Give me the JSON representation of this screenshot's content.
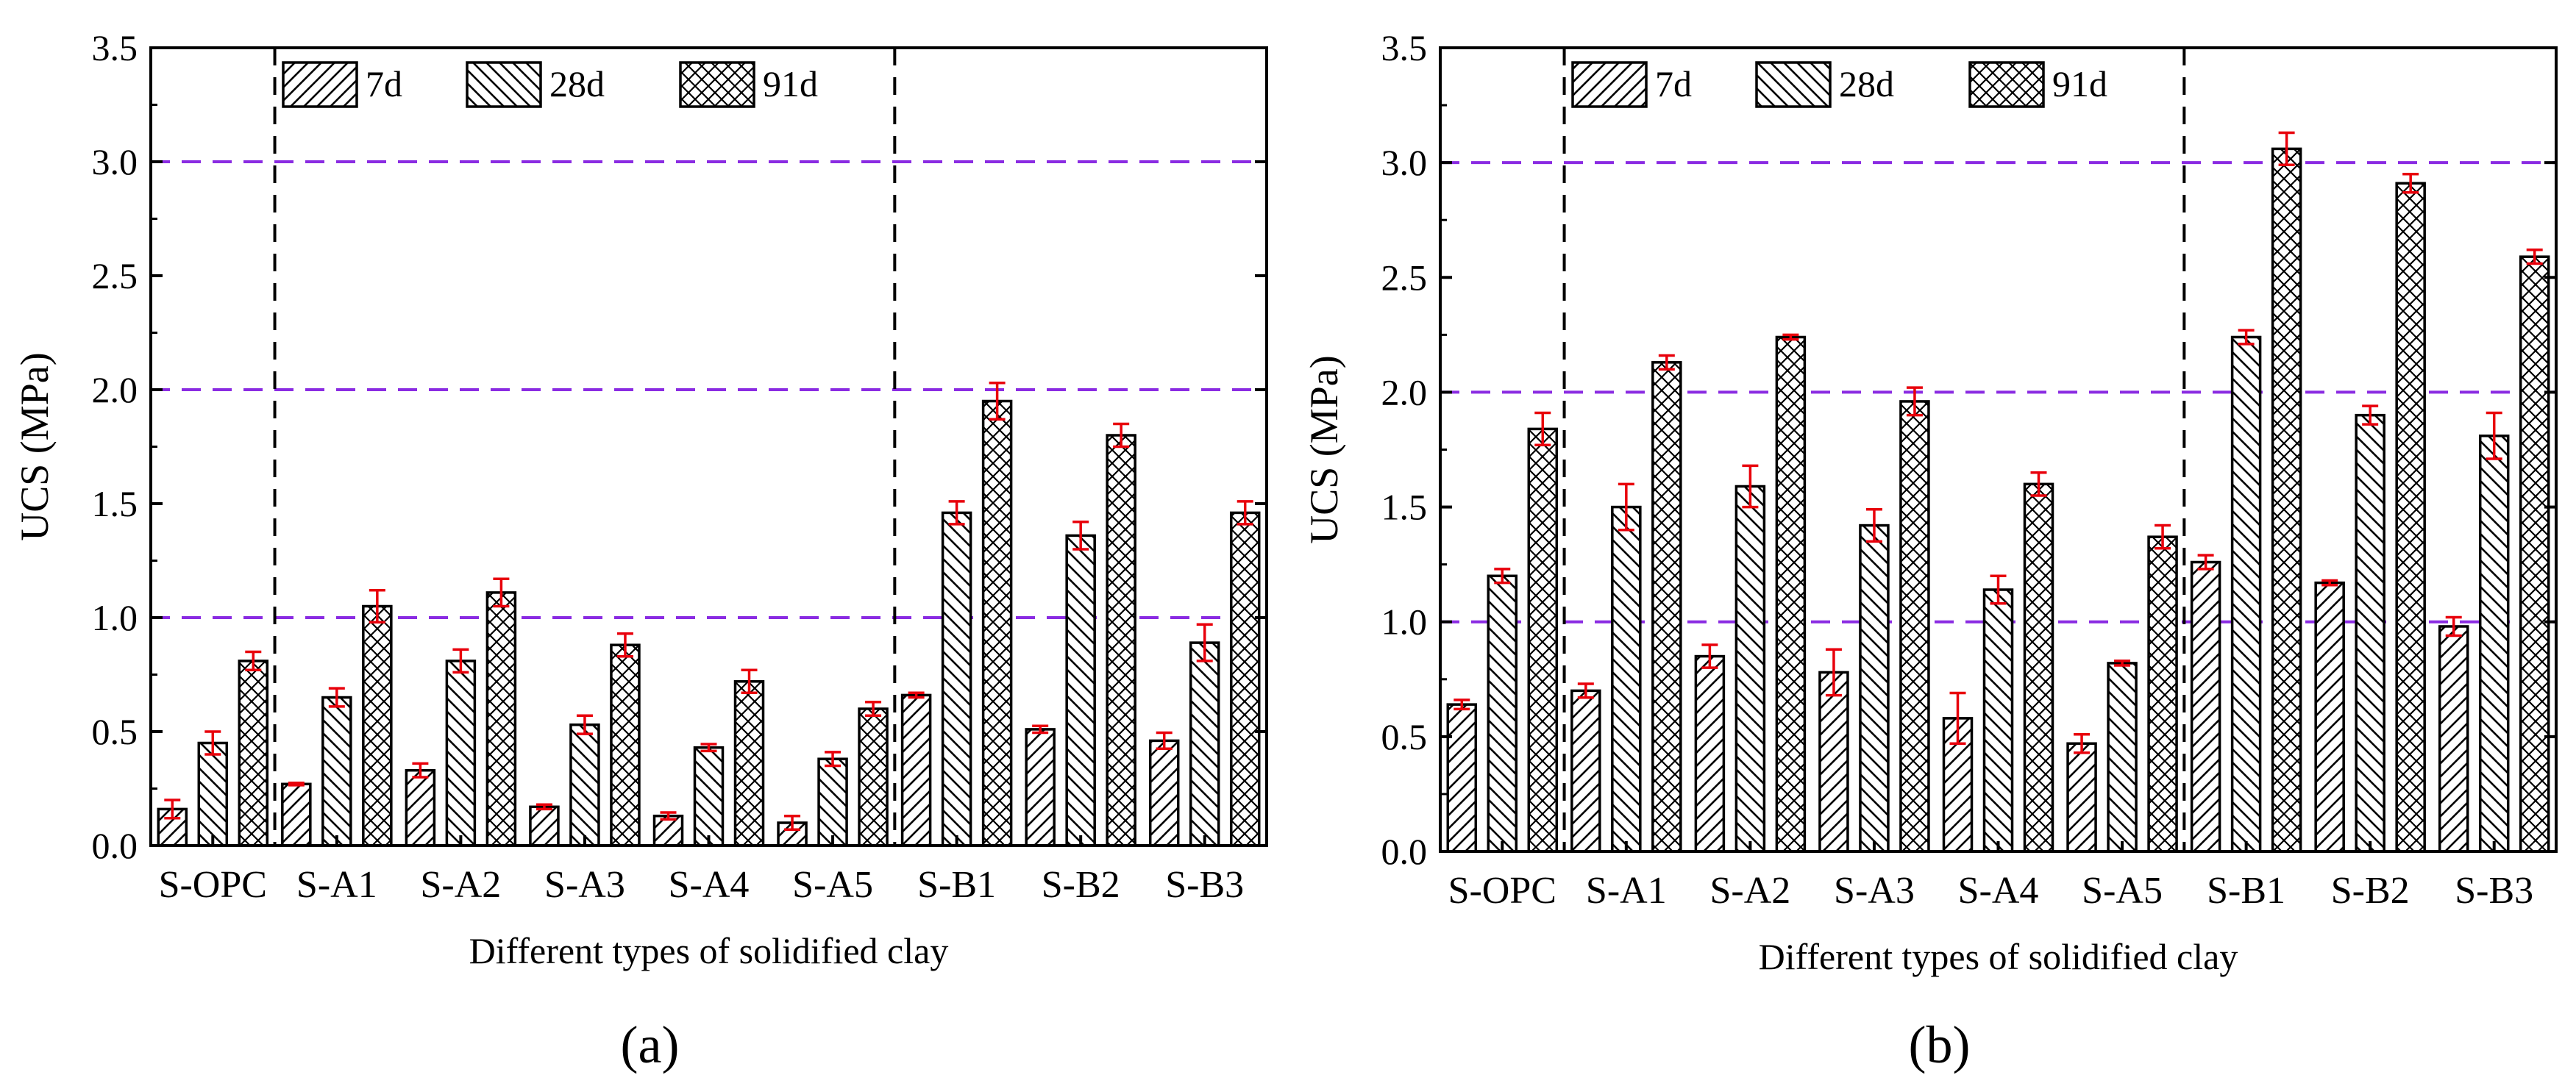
{
  "chart_data": [
    {
      "type": "bar",
      "panel_label": "(a)",
      "xlabel": "Different types of solidified clay",
      "ylabel": "UCS (MPa)",
      "ylim": [
        0,
        3.5
      ],
      "yticks": [
        "0.0",
        "0.5",
        "1.0",
        "1.5",
        "2.0",
        "2.5",
        "3.0",
        "3.5"
      ],
      "reference_lines": [
        1.0,
        2.0,
        3.0
      ],
      "group_separators_after": [
        "S-OPC",
        "S-A5"
      ],
      "legend_position": "top-left",
      "categories": [
        "S-OPC",
        "S-A1",
        "S-A2",
        "S-A3",
        "S-A4",
        "S-A5",
        "S-B1",
        "S-B2",
        "S-B3"
      ],
      "series": [
        {
          "name": "7d",
          "pattern": "diag-right",
          "values": [
            0.16,
            0.27,
            0.33,
            0.17,
            0.13,
            0.1,
            0.66,
            0.51,
            0.46
          ],
          "errors": [
            0.04,
            0.005,
            0.03,
            0.01,
            0.015,
            0.03,
            0.01,
            0.015,
            0.035
          ]
        },
        {
          "name": "28d",
          "pattern": "diag-left",
          "values": [
            0.45,
            0.65,
            0.81,
            0.53,
            0.43,
            0.38,
            1.46,
            1.36,
            0.89
          ],
          "errors": [
            0.05,
            0.04,
            0.05,
            0.04,
            0.015,
            0.03,
            0.05,
            0.06,
            0.08
          ]
        },
        {
          "name": "91d",
          "pattern": "cross",
          "values": [
            0.81,
            1.05,
            1.11,
            0.88,
            0.72,
            0.6,
            1.95,
            1.8,
            1.46
          ],
          "errors": [
            0.04,
            0.07,
            0.06,
            0.05,
            0.05,
            0.03,
            0.08,
            0.05,
            0.05
          ]
        }
      ]
    },
    {
      "type": "bar",
      "panel_label": "(b)",
      "xlabel": "Different types of solidified clay",
      "ylabel": "UCS (MPa)",
      "ylim": [
        0,
        3.5
      ],
      "yticks": [
        "0.0",
        "0.5",
        "1.0",
        "1.5",
        "2.0",
        "2.5",
        "3.0",
        "3.5"
      ],
      "reference_lines": [
        1.0,
        2.0,
        3.0
      ],
      "group_separators_after": [
        "S-OPC",
        "S-A5"
      ],
      "legend_position": "top-left",
      "categories": [
        "S-OPC",
        "S-A1",
        "S-A2",
        "S-A3",
        "S-A4",
        "S-A5",
        "S-B1",
        "S-B2",
        "S-B3"
      ],
      "series": [
        {
          "name": "7d",
          "pattern": "diag-right",
          "values": [
            0.64,
            0.7,
            0.85,
            0.78,
            0.58,
            0.47,
            1.26,
            1.17,
            0.98
          ],
          "errors": [
            0.02,
            0.03,
            0.05,
            0.1,
            0.11,
            0.04,
            0.03,
            0.01,
            0.04
          ]
        },
        {
          "name": "28d",
          "pattern": "diag-left",
          "values": [
            1.2,
            1.5,
            1.59,
            1.42,
            1.14,
            0.82,
            2.24,
            1.9,
            1.81
          ],
          "errors": [
            0.03,
            0.1,
            0.09,
            0.07,
            0.06,
            0.01,
            0.03,
            0.04,
            0.1
          ]
        },
        {
          "name": "91d",
          "pattern": "cross",
          "values": [
            1.84,
            2.13,
            2.24,
            1.96,
            1.6,
            1.37,
            3.06,
            2.91,
            2.59
          ],
          "errors": [
            0.07,
            0.03,
            0.01,
            0.06,
            0.05,
            0.05,
            0.07,
            0.04,
            0.03
          ]
        }
      ]
    }
  ],
  "colors": {
    "bar_edge": "#000000",
    "bar_fill": "#ffffff",
    "error_bar": "#e8000b",
    "reference_line": "#8a2be2",
    "separator": "#000000"
  }
}
